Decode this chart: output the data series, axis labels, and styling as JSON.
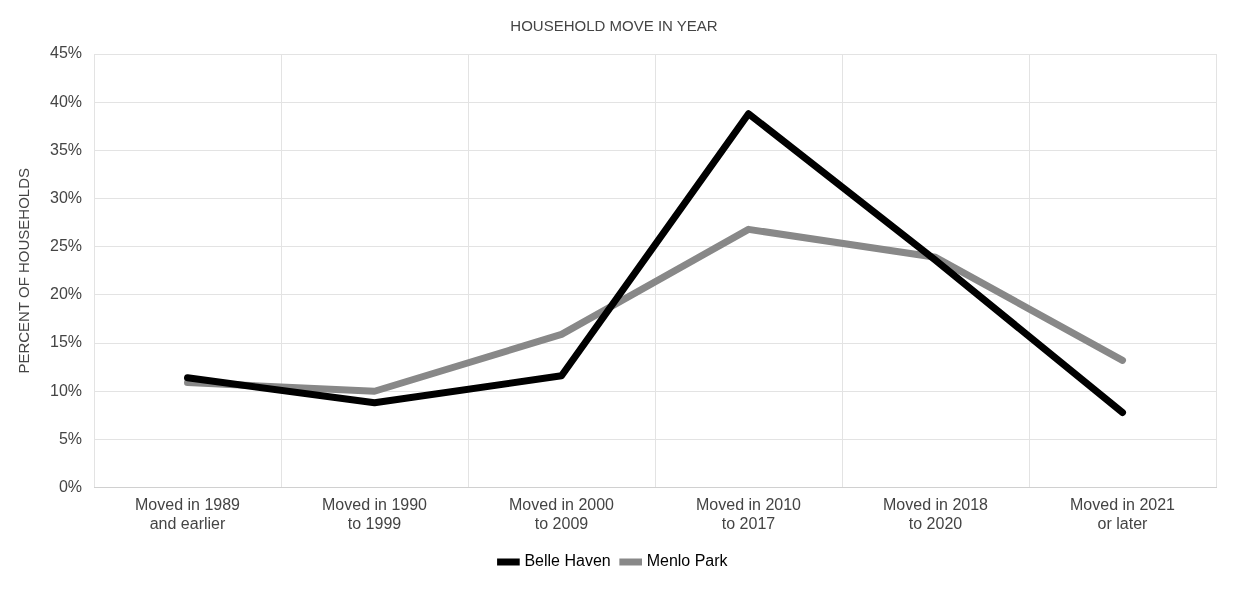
{
  "chart_data": {
    "type": "line",
    "title": "HOUSEHOLD MOVE IN YEAR",
    "ylabel": "PERCENT OF HOUSEHOLDS",
    "categories": [
      "Moved in 1989 and earlier",
      "Moved in 1990 to 1999",
      "Moved in 2000 to 2009",
      "Moved in 2010 to 2017",
      "Moved in 2018 to 2020",
      "Moved in 2021 or later"
    ],
    "series": [
      {
        "name": "Belle Haven",
        "color": "#000000",
        "values": [
          11.4,
          8.8,
          11.6,
          38.8,
          23.6,
          7.8
        ]
      },
      {
        "name": "Menlo Park",
        "color": "#888888",
        "values": [
          10.9,
          10.0,
          15.9,
          26.8,
          23.9,
          13.2
        ]
      }
    ],
    "ylim": [
      0,
      45
    ],
    "yticks": [
      {
        "value": 0,
        "label": "0%"
      },
      {
        "value": 5,
        "label": "5%"
      },
      {
        "value": 10,
        "label": "10%"
      },
      {
        "value": 15,
        "label": "15%"
      },
      {
        "value": 20,
        "label": "20%"
      },
      {
        "value": 25,
        "label": "25%"
      },
      {
        "value": 30,
        "label": "30%"
      },
      {
        "value": 35,
        "label": "35%"
      },
      {
        "value": 40,
        "label": "40%"
      },
      {
        "value": 45,
        "label": "45%"
      }
    ],
    "grid": true,
    "legend": "bottom",
    "marker": "none",
    "line_style": "solid"
  }
}
